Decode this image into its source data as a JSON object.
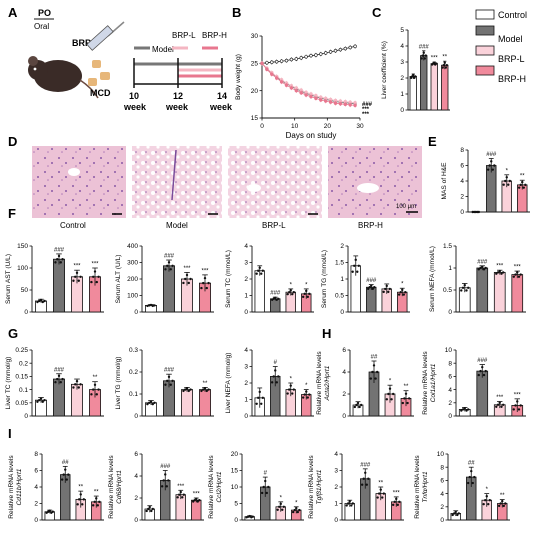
{
  "panel_letters": [
    "A",
    "B",
    "C",
    "D",
    "E",
    "F",
    "G",
    "H",
    "I"
  ],
  "panel_a": {
    "po": "PO",
    "oral": "Oral",
    "brp": "BRP",
    "mcd": "MCD",
    "groups": [
      "Model",
      "BRP-L",
      "BRP-H"
    ],
    "weeks": [
      "10",
      "12",
      "14"
    ],
    "week_word": "week",
    "colors": {
      "model": "#777777",
      "brp_l": "#f4b6c2",
      "brp_h": "#e8778f"
    }
  },
  "legend": {
    "items": [
      {
        "name": "Control",
        "color": "#ffffff"
      },
      {
        "name": "Model",
        "color": "#737373"
      },
      {
        "name": "BRP-L",
        "color": "#fad2da"
      },
      {
        "name": "BRP-H",
        "color": "#f08a9c"
      }
    ]
  },
  "he_labels": [
    "Control",
    "Model",
    "BRP-L",
    "BRP-H"
  ],
  "scale_bar": "100 μm",
  "stars": {
    "hash3": "###",
    "hash2": "##",
    "hash1": "#",
    "s3": "***",
    "s2": "**",
    "s1": "*"
  },
  "chart_data": [
    {
      "id": "B",
      "type": "line",
      "xlabel": "Days on study",
      "ylabel": "Body weight (g)",
      "xlim": [
        0,
        30
      ],
      "ylim": [
        15,
        30
      ],
      "xticks": [
        0,
        10,
        20,
        30
      ],
      "yticks": [
        15,
        20,
        25,
        30
      ],
      "series": [
        {
          "x": [
            0,
            1.5,
            3,
            4.5,
            6,
            7.5,
            9,
            10.5,
            12,
            13.5,
            15,
            16.5,
            18,
            19.5,
            21,
            22.5,
            24,
            25.5,
            27,
            28.5
          ],
          "values": [
            25,
            25.1,
            25.2,
            25.3,
            25.4,
            25.5,
            25.7,
            25.8,
            26,
            26.2,
            26.4,
            26.5,
            26.7,
            26.9,
            27.1,
            27.3,
            27.5,
            27.7,
            27.9,
            28.1
          ],
          "color": "#222222"
        },
        {
          "x": [
            0,
            1.5,
            3,
            4.5,
            6,
            7.5,
            9,
            10.5,
            12,
            13.5,
            15,
            16.5,
            18,
            19.5,
            21,
            22.5,
            24,
            25.5,
            27,
            28.5
          ],
          "values": [
            25,
            24,
            23.2,
            22.5,
            21.8,
            21.3,
            20.8,
            20.3,
            19.9,
            19.5,
            19.2,
            18.9,
            18.6,
            18.4,
            18.2,
            18,
            17.9,
            17.8,
            17.7,
            17.6
          ],
          "color": "#777777"
        },
        {
          "x": [
            0,
            1.5,
            3,
            4.5,
            6,
            7.5,
            9,
            10.5,
            12,
            13.5,
            15,
            16.5,
            18,
            19.5,
            21,
            22.5,
            24,
            25.5,
            27,
            28.5
          ],
          "values": [
            25,
            24.1,
            23.3,
            22.6,
            22,
            21.4,
            20.9,
            20.5,
            20.1,
            19.7,
            19.4,
            19.1,
            18.8,
            18.6,
            18.4,
            18.2,
            18.1,
            18,
            17.9,
            17.8
          ],
          "color": "#f4b6c2"
        },
        {
          "x": [
            0,
            1.5,
            3,
            4.5,
            6,
            7.5,
            9,
            10.5,
            12,
            13.5,
            15,
            16.5,
            18,
            19.5,
            21,
            22.5,
            24,
            25.5,
            27,
            28.5
          ],
          "values": [
            25,
            23.9,
            23,
            22.3,
            21.6,
            21,
            20.5,
            20,
            19.6,
            19.2,
            18.9,
            18.6,
            18.3,
            18.1,
            17.9,
            17.7,
            17.6,
            17.5,
            17.4,
            17.3
          ],
          "color": "#e8778f"
        }
      ],
      "annotations": [
        "###",
        "***",
        "***"
      ]
    },
    {
      "id": "C",
      "type": "bar",
      "ylabel": "Liver coefficient (%)",
      "ylim": [
        0,
        5
      ],
      "yticks": [
        0,
        1,
        2,
        3,
        4,
        5
      ],
      "values": [
        2.1,
        3.4,
        2.9,
        2.8
      ],
      "errors": [
        0.15,
        0.3,
        0.1,
        0.25
      ],
      "marks": [
        "",
        "###",
        "***",
        "**"
      ]
    },
    {
      "id": "E",
      "type": "bar",
      "ylabel": "MAS of H&E",
      "ylim": [
        0,
        8
      ],
      "yticks": [
        0,
        2,
        4,
        6,
        8
      ],
      "values": [
        0,
        6,
        4,
        3.5
      ],
      "errors": [
        0,
        0.9,
        0.8,
        0.6
      ],
      "marks": [
        "",
        "###",
        "*",
        "**"
      ]
    },
    {
      "id": "F1",
      "type": "bar",
      "ylabel": "Serum AST (U/L)",
      "ylim": [
        0,
        150
      ],
      "yticks": [
        0,
        50,
        100,
        150
      ],
      "values": [
        25,
        120,
        80,
        80
      ],
      "errors": [
        4,
        12,
        15,
        20
      ],
      "marks": [
        "",
        "###",
        "***",
        "***"
      ]
    },
    {
      "id": "F2",
      "type": "bar",
      "ylabel": "Serum ALT (U/L)",
      "ylim": [
        0,
        400
      ],
      "yticks": [
        0,
        100,
        200,
        300,
        400
      ],
      "values": [
        40,
        280,
        200,
        175
      ],
      "errors": [
        5,
        35,
        40,
        50
      ],
      "marks": [
        "",
        "###",
        "***",
        "***"
      ]
    },
    {
      "id": "F3",
      "type": "bar",
      "ylabel": "Serum TC (mmol/L)",
      "ylim": [
        0,
        4
      ],
      "yticks": [
        0,
        1,
        2,
        3,
        4
      ],
      "values": [
        2.5,
        0.8,
        1.2,
        1.1
      ],
      "errors": [
        0.3,
        0.1,
        0.2,
        0.3
      ],
      "marks": [
        "",
        "###",
        "*",
        "*"
      ]
    },
    {
      "id": "F4",
      "type": "bar",
      "ylabel": "Serum TG (mmol/L)",
      "ylim": [
        0,
        2.0
      ],
      "yticks": [
        0,
        0.5,
        1.0,
        1.5,
        2.0
      ],
      "values": [
        1.4,
        0.75,
        0.7,
        0.6
      ],
      "errors": [
        0.3,
        0.08,
        0.15,
        0.12
      ],
      "marks": [
        "",
        "###",
        "",
        "*"
      ]
    },
    {
      "id": "F5",
      "type": "bar",
      "ylabel": "Serum NEFA (mmol/L)",
      "ylim": [
        0,
        1.5
      ],
      "yticks": [
        0,
        0.5,
        1.0,
        1.5
      ],
      "values": [
        0.55,
        1.0,
        0.9,
        0.85
      ],
      "errors": [
        0.1,
        0.05,
        0.05,
        0.08
      ],
      "marks": [
        "",
        "###",
        "***",
        "***"
      ]
    },
    {
      "id": "G1",
      "type": "bar",
      "ylabel": "Liver TC (mmol/g)",
      "ylim": [
        0,
        0.25
      ],
      "yticks": [
        0,
        0.05,
        0.1,
        0.15,
        0.2,
        0.25
      ],
      "values": [
        0.06,
        0.14,
        0.12,
        0.1
      ],
      "errors": [
        0.01,
        0.02,
        0.02,
        0.03
      ],
      "marks": [
        "",
        "###",
        "",
        "**"
      ]
    },
    {
      "id": "G2",
      "type": "bar",
      "ylabel": "Liver TG (mmol/g)",
      "ylim": [
        0,
        0.3
      ],
      "yticks": [
        0,
        0.1,
        0.2,
        0.3
      ],
      "values": [
        0.06,
        0.16,
        0.12,
        0.12
      ],
      "errors": [
        0.01,
        0.03,
        0.01,
        0.01
      ],
      "marks": [
        "",
        "###",
        "",
        "**"
      ]
    },
    {
      "id": "G3",
      "type": "bar",
      "ylabel": "Liver NEFA (mmol/g)",
      "ylim": [
        0,
        4
      ],
      "yticks": [
        0,
        1,
        2,
        3,
        4
      ],
      "values": [
        1.1,
        2.4,
        1.6,
        1.3
      ],
      "errors": [
        0.6,
        0.6,
        0.4,
        0.3
      ],
      "marks": [
        "",
        "#",
        "*",
        "*"
      ]
    },
    {
      "id": "H1",
      "type": "bar",
      "ylabel": "Relative mRNA levels Acta2/Hprt1",
      "ylim": [
        0,
        6
      ],
      "yticks": [
        0,
        2,
        4,
        6
      ],
      "values": [
        1,
        4,
        2,
        1.6
      ],
      "errors": [
        0.3,
        1,
        0.8,
        0.7
      ],
      "marks": [
        "",
        "##",
        "*",
        "**"
      ]
    },
    {
      "id": "H2",
      "type": "bar",
      "ylabel": "Relative mRNA levels Col1a1/Hprt1",
      "ylim": [
        0,
        10
      ],
      "yticks": [
        0,
        2,
        4,
        6,
        8,
        10
      ],
      "values": [
        1,
        6.8,
        1.7,
        1.6
      ],
      "errors": [
        0.3,
        1,
        0.5,
        1
      ],
      "marks": [
        "",
        "###",
        "***",
        "***"
      ]
    },
    {
      "id": "I1",
      "type": "bar",
      "ylabel": "Relative mRNA levels Cd11b/Hprt1",
      "ylim": [
        0,
        8
      ],
      "yticks": [
        0,
        2,
        4,
        6,
        8
      ],
      "values": [
        1,
        5.5,
        2.5,
        2.2
      ],
      "errors": [
        0.2,
        1,
        1,
        0.7
      ],
      "marks": [
        "",
        "##",
        "**",
        "**"
      ]
    },
    {
      "id": "I2",
      "type": "bar",
      "ylabel": "Relative mRNA levels Cd68/Hprt1",
      "ylim": [
        0,
        6
      ],
      "yticks": [
        0,
        2,
        4,
        6
      ],
      "values": [
        1,
        3.6,
        2.3,
        1.8
      ],
      "errors": [
        0.3,
        0.9,
        0.4,
        0.2
      ],
      "marks": [
        "",
        "###",
        "***",
        "***"
      ]
    },
    {
      "id": "I3",
      "type": "bar",
      "ylabel": "Relative mRNA levels Ccl2/Hprt1",
      "ylim": [
        0,
        20
      ],
      "yticks": [
        0,
        5,
        10,
        15,
        20
      ],
      "values": [
        1,
        10,
        4,
        3
      ],
      "errors": [
        0.3,
        3,
        1.5,
        1
      ],
      "marks": [
        "",
        "#",
        "*",
        "*"
      ]
    },
    {
      "id": "I4",
      "type": "bar",
      "ylabel": "Relative mRNA levels Tgfβ1/Hprt1",
      "ylim": [
        0,
        4
      ],
      "yticks": [
        0,
        1,
        2,
        3,
        4
      ],
      "values": [
        1,
        2.5,
        1.6,
        1.1
      ],
      "errors": [
        0.2,
        0.6,
        0.4,
        0.3
      ],
      "marks": [
        "",
        "###",
        "**",
        "***"
      ]
    },
    {
      "id": "I5",
      "type": "bar",
      "ylabel": "Relative mRNA levels Tnfα/Hprt1",
      "ylim": [
        0,
        10
      ],
      "yticks": [
        0,
        2,
        4,
        6,
        8,
        10
      ],
      "values": [
        1,
        6.5,
        3,
        2.5
      ],
      "errors": [
        0.4,
        1.5,
        1,
        0.6
      ],
      "marks": [
        "",
        "##",
        "*",
        "**"
      ]
    }
  ]
}
